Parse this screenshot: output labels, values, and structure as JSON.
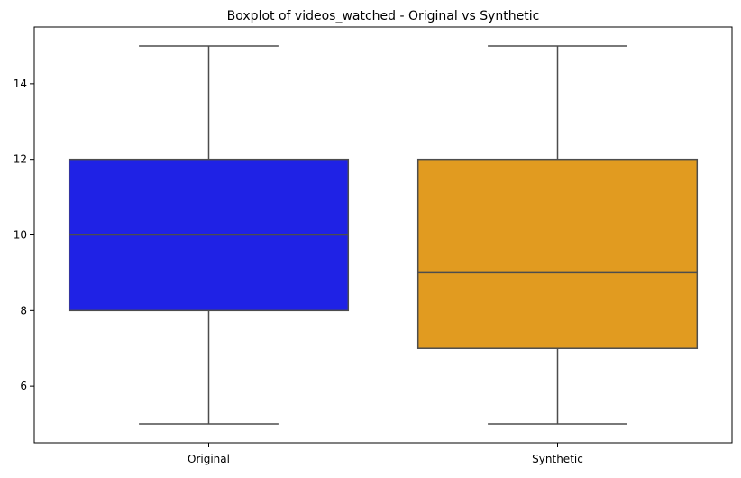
{
  "chart_data": {
    "type": "box",
    "title": "Boxplot of videos_watched - Original vs Synthetic",
    "xlabel": "",
    "ylabel": "",
    "categories": [
      "Original",
      "Synthetic"
    ],
    "series": [
      {
        "name": "Original",
        "color": "#1f22e5",
        "min": 5,
        "q1": 8,
        "median": 10,
        "q3": 12,
        "max": 15
      },
      {
        "name": "Synthetic",
        "color": "#e19b20",
        "min": 5,
        "q1": 7,
        "median": 9,
        "q3": 12,
        "max": 15
      }
    ],
    "ylim": [
      4.5,
      15.5
    ],
    "yticks": [
      6,
      8,
      10,
      12,
      14
    ],
    "grid": false,
    "legend": "none",
    "line_color": "#4d4d4d"
  }
}
